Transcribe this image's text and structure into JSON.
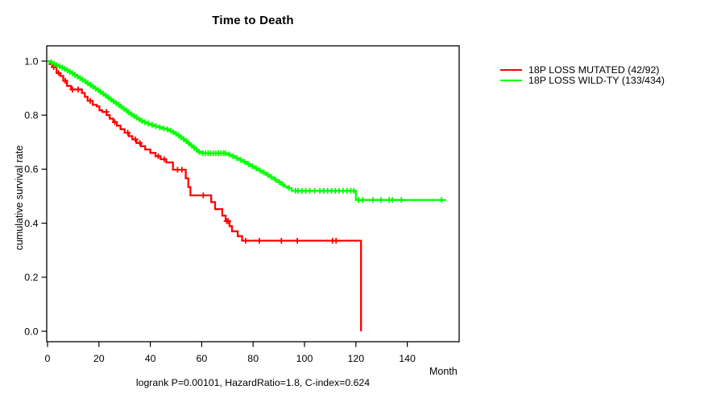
{
  "chart_data": {
    "type": "line",
    "subtype": "kaplan-meier-step",
    "title": "Time to Death",
    "xlabel": "Month",
    "ylabel": "cumulative survival rate",
    "annotation": "logrank P=0.00101, HazardRatio=1.8, C-index=0.624",
    "xlim": [
      0,
      160
    ],
    "ylim": [
      0.0,
      1.0
    ],
    "xticks": [
      0,
      20,
      40,
      60,
      80,
      100,
      120,
      140
    ],
    "yticks": [
      "0.0",
      "0.2",
      "0.4",
      "0.6",
      "0.8",
      "1.0"
    ],
    "grid": false,
    "legend_position": "right-outside",
    "frame_color": "#000000",
    "series": [
      {
        "id": "mutated",
        "label": "18P LOSS MUTATED (42/92)",
        "color": "#ff0000",
        "end_month": null,
        "steps": [
          [
            0,
            1.0
          ],
          [
            0.8,
            0.989
          ],
          [
            1.9,
            0.978
          ],
          [
            3.5,
            0.956
          ],
          [
            5.0,
            0.945
          ],
          [
            6.1,
            0.927
          ],
          [
            7.6,
            0.908
          ],
          [
            9.2,
            0.895
          ],
          [
            13.4,
            0.882
          ],
          [
            14.5,
            0.868
          ],
          [
            15.6,
            0.853
          ],
          [
            17.6,
            0.838
          ],
          [
            19.2,
            0.832
          ],
          [
            20.2,
            0.818
          ],
          [
            21.3,
            0.812
          ],
          [
            23,
            0.8
          ],
          [
            24.2,
            0.787
          ],
          [
            25.6,
            0.774
          ],
          [
            27,
            0.761
          ],
          [
            28.4,
            0.748
          ],
          [
            30,
            0.735
          ],
          [
            31.6,
            0.722
          ],
          [
            33,
            0.71
          ],
          [
            34.6,
            0.697
          ],
          [
            36.4,
            0.685
          ],
          [
            38,
            0.673
          ],
          [
            40,
            0.66
          ],
          [
            42,
            0.648
          ],
          [
            44,
            0.637
          ],
          [
            46.2,
            0.625
          ],
          [
            48.8,
            0.598
          ],
          [
            53.8,
            0.566
          ],
          [
            54.8,
            0.534
          ],
          [
            55.6,
            0.503
          ],
          [
            63.7,
            0.478
          ],
          [
            65.2,
            0.452
          ],
          [
            68,
            0.428
          ],
          [
            69.3,
            0.408
          ],
          [
            70.8,
            0.389
          ],
          [
            71.8,
            0.37
          ],
          [
            74,
            0.352
          ],
          [
            75.7,
            0.335
          ],
          [
            122,
            0.0
          ]
        ],
        "censors": [
          2.4,
          4.3,
          6.9,
          9.7,
          11.9,
          16.6,
          22.9,
          26.2,
          31.2,
          34.2,
          35.9,
          43.1,
          45.4,
          50.6,
          52.3,
          60.6,
          69.7,
          70.3,
          77.1,
          82.4,
          91,
          97.2,
          110.9,
          112.3
        ]
      },
      {
        "id": "wildtype",
        "label": "18P LOSS WILD-TY (133/434)",
        "color": "#00ff00",
        "end_month": 155,
        "steps": [
          [
            0,
            1.0
          ],
          [
            1,
            0.995
          ],
          [
            2.1,
            0.99
          ],
          [
            3.2,
            0.985
          ],
          [
            4.2,
            0.981
          ],
          [
            5.2,
            0.976
          ],
          [
            6.2,
            0.971
          ],
          [
            7.2,
            0.966
          ],
          [
            8.2,
            0.961
          ],
          [
            9.2,
            0.955
          ],
          [
            10.2,
            0.949
          ],
          [
            11.2,
            0.943
          ],
          [
            12.2,
            0.937
          ],
          [
            13.2,
            0.931
          ],
          [
            14.2,
            0.925
          ],
          [
            15.2,
            0.918
          ],
          [
            16.2,
            0.912
          ],
          [
            17.2,
            0.906
          ],
          [
            18.2,
            0.899
          ],
          [
            19.2,
            0.893
          ],
          [
            20.2,
            0.886
          ],
          [
            21.2,
            0.879
          ],
          [
            22.2,
            0.872
          ],
          [
            23.2,
            0.865
          ],
          [
            24.2,
            0.858
          ],
          [
            25.2,
            0.851
          ],
          [
            26.2,
            0.845
          ],
          [
            27.2,
            0.838
          ],
          [
            28.2,
            0.831
          ],
          [
            29.2,
            0.824
          ],
          [
            30.2,
            0.817
          ],
          [
            31.2,
            0.81
          ],
          [
            32.2,
            0.803
          ],
          [
            33.2,
            0.797
          ],
          [
            34.2,
            0.791
          ],
          [
            35.2,
            0.785
          ],
          [
            36.2,
            0.779
          ],
          [
            37.2,
            0.774
          ],
          [
            38.5,
            0.769
          ],
          [
            40,
            0.764
          ],
          [
            41.5,
            0.759
          ],
          [
            43,
            0.755
          ],
          [
            44.5,
            0.751
          ],
          [
            46,
            0.747
          ],
          [
            47.5,
            0.742
          ],
          [
            48.5,
            0.737
          ],
          [
            49.5,
            0.731
          ],
          [
            50.5,
            0.725
          ],
          [
            51.5,
            0.718
          ],
          [
            52.5,
            0.711
          ],
          [
            53.5,
            0.704
          ],
          [
            54.5,
            0.696
          ],
          [
            55.5,
            0.688
          ],
          [
            56.5,
            0.68
          ],
          [
            57.5,
            0.672
          ],
          [
            58.5,
            0.664
          ],
          [
            59.8,
            0.659
          ],
          [
            70,
            0.654
          ],
          [
            71.5,
            0.648
          ],
          [
            73,
            0.641
          ],
          [
            74.5,
            0.634
          ],
          [
            76,
            0.627
          ],
          [
            77.5,
            0.619
          ],
          [
            79,
            0.611
          ],
          [
            80.5,
            0.603
          ],
          [
            82,
            0.595
          ],
          [
            83.5,
            0.587
          ],
          [
            85,
            0.579
          ],
          [
            86.5,
            0.57
          ],
          [
            88,
            0.561
          ],
          [
            89.5,
            0.552
          ],
          [
            91,
            0.543
          ],
          [
            92.3,
            0.535
          ],
          [
            93.5,
            0.53
          ],
          [
            95,
            0.52
          ],
          [
            120,
            0.486
          ]
        ],
        "censors": [
          1.5,
          2.6,
          3.7,
          4.7,
          5.7,
          6.7,
          7.7,
          8.7,
          9.7,
          10.7,
          11.7,
          12.7,
          13.7,
          14.7,
          15.7,
          16.7,
          17.7,
          18.7,
          19.7,
          20.7,
          21.7,
          22.7,
          23.7,
          24.7,
          25.7,
          26.7,
          27.7,
          28.7,
          29.7,
          30.7,
          31.7,
          32.7,
          33.7,
          34.7,
          35.7,
          36.7,
          37.8,
          39.2,
          40.7,
          42.2,
          43.7,
          45.2,
          46.7,
          48,
          49,
          50,
          51,
          52,
          53,
          54,
          55,
          56,
          57,
          58,
          59,
          60.5,
          61.5,
          62.5,
          63.5,
          64.5,
          65.5,
          66.5,
          67.5,
          68.5,
          69.2,
          70.7,
          72.2,
          73.7,
          75.2,
          76.7,
          78.2,
          79.7,
          81.2,
          82.7,
          84.2,
          85.7,
          87.2,
          88.7,
          90.2,
          91.7,
          94,
          96.5,
          97.5,
          99,
          100.5,
          102,
          104,
          106,
          107.5,
          109,
          110.5,
          112,
          113.5,
          115,
          116.5,
          118,
          119.2,
          121,
          122.6,
          126.7,
          129.8,
          133,
          134.2,
          137.7,
          153.3
        ]
      }
    ]
  }
}
